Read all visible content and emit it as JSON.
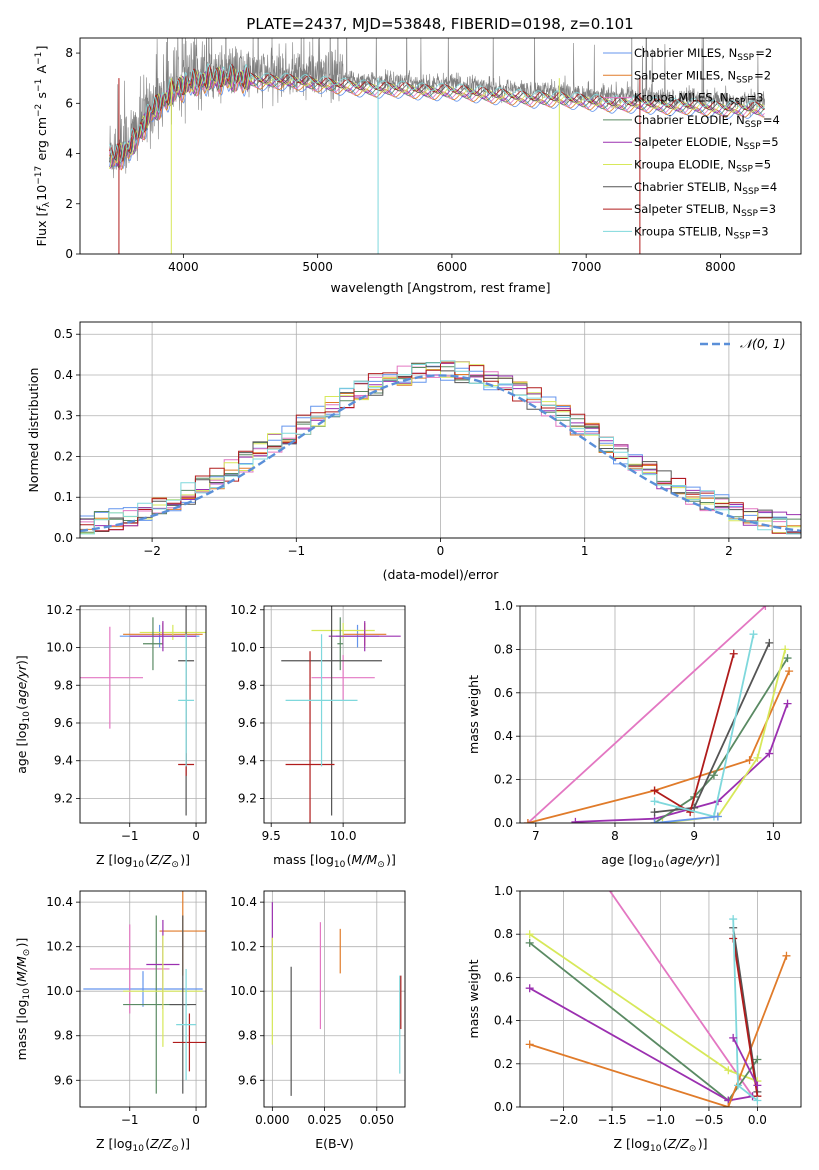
{
  "title": "PLATE=2437, MJD=53848, FIBERID=0198, z=0.101",
  "colors": {
    "chabrier_miles": "#6495ed",
    "salpeter_miles": "#e07b2a",
    "kroupa_miles": "#e377c2",
    "chabrier_elodie": "#5a8a63",
    "salpeter_elodie": "#9b30b0",
    "kroupa_elodie": "#d7e85a",
    "chabrier_stelib": "#555555",
    "salpeter_stelib": "#b01c1c",
    "kroupa_stelib": "#7fd8dc",
    "data": "#808080"
  },
  "chart_data": [
    {
      "id": "spectrum",
      "type": "line",
      "xlabel": "wavelength [Angstrom, rest frame]",
      "ylabel": "Flux [f_λ 10^-17 erg cm^-2 s^-1 A^-1]",
      "xlim": [
        3230,
        8600
      ],
      "ylim": [
        0,
        8.6
      ],
      "xticks": [
        4000,
        5000,
        6000,
        7000,
        8000
      ],
      "yticks": [
        0,
        2,
        4,
        6,
        8
      ],
      "legend": "right",
      "legend_entries": [
        {
          "name": "Chabrier MILES",
          "nssp": "2",
          "color": "chabrier_miles"
        },
        {
          "name": "Salpeter MILES",
          "nssp": "2",
          "color": "salpeter_miles"
        },
        {
          "name": "Kroupa MILES",
          "nssp": "3",
          "color": "kroupa_miles"
        },
        {
          "name": "Chabrier ELODIE",
          "nssp": "4",
          "color": "chabrier_elodie"
        },
        {
          "name": "Salpeter ELODIE",
          "nssp": "5",
          "color": "salpeter_elodie"
        },
        {
          "name": "Kroupa ELODIE",
          "nssp": "5",
          "color": "kroupa_elodie"
        },
        {
          "name": "Chabrier STELIB",
          "nssp": "4",
          "color": "chabrier_stelib"
        },
        {
          "name": "Salpeter STELIB",
          "nssp": "3",
          "color": "salpeter_stelib"
        },
        {
          "name": "Kroupa STELIB",
          "nssp": "3",
          "color": "kroupa_stelib"
        }
      ],
      "continuum": {
        "x": [
          3450,
          3550,
          3650,
          3750,
          3850,
          3950,
          4050,
          4200,
          4400,
          4600,
          4800,
          5000,
          5200,
          5400,
          5600,
          5800,
          6000,
          6200,
          6400,
          6600,
          6800,
          7000,
          7200,
          7400,
          7600,
          7800,
          8000,
          8200,
          8330
        ],
        "y": [
          4.1,
          4.3,
          4.9,
          5.9,
          6.4,
          6.9,
          7.1,
          7.3,
          7.3,
          7.2,
          7.2,
          7.1,
          7.0,
          6.9,
          6.9,
          6.8,
          6.8,
          6.7,
          6.6,
          6.5,
          6.5,
          6.4,
          6.3,
          6.3,
          6.2,
          6.2,
          6.1,
          6.1,
          6.1
        ]
      },
      "drops": [
        {
          "x": 3520,
          "color": "salpeter_stelib"
        },
        {
          "x": 3910,
          "color": "kroupa_elodie"
        },
        {
          "x": 5450,
          "color": "kroupa_stelib"
        },
        {
          "x": 6800,
          "color": "kroupa_elodie"
        },
        {
          "x": 7400,
          "color": "salpeter_stelib"
        }
      ]
    },
    {
      "id": "residuals",
      "type": "line",
      "xlabel": "(data-model)/error",
      "ylabel": "Normed distribution",
      "xlim": [
        -2.5,
        2.5
      ],
      "ylim": [
        0,
        0.53
      ],
      "xticks": [
        -2,
        -1,
        0,
        1,
        2
      ],
      "yticks": [
        0.0,
        0.1,
        0.2,
        0.3,
        0.4,
        0.5
      ],
      "grid": true,
      "legend": "top-right",
      "legend_label": "𝒩(0, 1)",
      "bin_width": 0.1
    },
    {
      "id": "age-vs-z",
      "type": "scatter",
      "xlabel": "Z [log10(Z/Z⊙)]",
      "ylabel": "age [log10(age/yr)]",
      "xlim": [
        -1.75,
        0.15
      ],
      "ylim": [
        9.07,
        10.22
      ],
      "xticks": [
        -1,
        0
      ],
      "yticks": [
        9.2,
        9.4,
        9.6,
        9.8,
        10.0,
        10.2
      ],
      "grid": true,
      "points": [
        {
          "x": -0.55,
          "y": 10.06,
          "xerr": 0.6,
          "yerr": 0.06,
          "color": "chabrier_miles"
        },
        {
          "x": -0.5,
          "y": 10.07,
          "xerr": 0.6,
          "yerr": 0.06,
          "color": "salpeter_miles"
        },
        {
          "x": -0.35,
          "y": 10.08,
          "xerr": 0.5,
          "yerr": 0.04,
          "color": "kroupa_elodie"
        },
        {
          "x": -0.65,
          "y": 10.02,
          "xerr": 0.15,
          "yerr": 0.14,
          "color": "chabrier_elodie"
        },
        {
          "x": -0.5,
          "y": 10.06,
          "xerr": 0.5,
          "yerr": 0.08,
          "color": "salpeter_elodie"
        },
        {
          "x": -1.3,
          "y": 9.84,
          "xerr": 0.5,
          "yerr": 0.27,
          "color": "kroupa_miles"
        },
        {
          "x": -0.15,
          "y": 9.93,
          "xerr": 0.12,
          "yerr": 0.82,
          "color": "chabrier_stelib"
        },
        {
          "x": -0.15,
          "y": 9.38,
          "xerr": 0.12,
          "yerr": 0.06,
          "color": "salpeter_stelib"
        },
        {
          "x": -0.15,
          "y": 9.72,
          "xerr": 0.12,
          "yerr": 0.35,
          "color": "kroupa_stelib"
        }
      ]
    },
    {
      "id": "age-vs-mass",
      "type": "scatter",
      "xlabel": "mass [log10(M/M⊙)]",
      "ylabel": "",
      "xlim": [
        9.45,
        10.43
      ],
      "ylim": [
        9.07,
        10.22
      ],
      "xticks": [
        9.5,
        10.0
      ],
      "yticks": [
        9.2,
        9.4,
        9.6,
        9.8,
        10.0,
        10.2
      ],
      "grid": true,
      "points": [
        {
          "x": 10.1,
          "y": 10.06,
          "xerr": 0.15,
          "yerr": 0.06,
          "color": "chabrier_miles"
        },
        {
          "x": 10.15,
          "y": 10.07,
          "xerr": 0.15,
          "yerr": 0.06,
          "color": "salpeter_miles"
        },
        {
          "x": 10.0,
          "y": 10.09,
          "xerr": 0.22,
          "yerr": 0.04,
          "color": "kroupa_elodie"
        },
        {
          "x": 9.98,
          "y": 10.02,
          "xerr": 0.02,
          "yerr": 0.14,
          "color": "chabrier_elodie"
        },
        {
          "x": 10.15,
          "y": 10.06,
          "xerr": 0.25,
          "yerr": 0.08,
          "color": "salpeter_elodie"
        },
        {
          "x": 10.0,
          "y": 9.84,
          "xerr": 0.22,
          "yerr": 0.12,
          "color": "kroupa_miles"
        },
        {
          "x": 9.92,
          "y": 9.93,
          "xerr": 0.35,
          "yerr": 0.82,
          "color": "chabrier_stelib"
        },
        {
          "x": 9.77,
          "y": 9.38,
          "xerr": 0.17,
          "yerr": 0.6,
          "color": "salpeter_stelib"
        },
        {
          "x": 9.85,
          "y": 9.72,
          "xerr": 0.25,
          "yerr": 0.35,
          "color": "kroupa_stelib"
        }
      ]
    },
    {
      "id": "weight-vs-age",
      "type": "line",
      "xlabel": "age [log10(age/yr)]",
      "ylabel": "mass weight",
      "xlim": [
        6.8,
        10.35
      ],
      "ylim": [
        0,
        1.0
      ],
      "xticks": [
        7,
        8,
        9,
        10
      ],
      "yticks": [
        0.0,
        0.2,
        0.4,
        0.6,
        0.8,
        1.0
      ],
      "grid": true,
      "series": [
        {
          "color": "kroupa_miles",
          "x": [
            6.9,
            9.9
          ],
          "y": [
            0.0,
            1.0
          ]
        },
        {
          "color": "salpeter_miles",
          "x": [
            6.9,
            8.5,
            9.7,
            10.2
          ],
          "y": [
            0.0,
            0.15,
            0.29,
            0.7
          ]
        },
        {
          "color": "salpeter_elodie",
          "x": [
            7.5,
            8.5,
            9.3,
            9.95,
            10.18
          ],
          "y": [
            0.005,
            0.02,
            0.1,
            0.32,
            0.55
          ]
        },
        {
          "color": "chabrier_elodie",
          "x": [
            8.5,
            9.0,
            9.25,
            10.18
          ],
          "y": [
            0.0,
            0.12,
            0.22,
            0.76
          ]
        },
        {
          "color": "kroupa_elodie",
          "x": [
            8.6,
            9.3,
            9.8,
            10.15
          ],
          "y": [
            0.0,
            0.03,
            0.3,
            0.8
          ]
        },
        {
          "color": "chabrier_stelib",
          "x": [
            8.5,
            9.0,
            9.95
          ],
          "y": [
            0.05,
            0.07,
            0.83
          ]
        },
        {
          "color": "salpeter_stelib",
          "x": [
            8.5,
            8.95,
            9.5
          ],
          "y": [
            0.15,
            0.05,
            0.78
          ]
        },
        {
          "color": "kroupa_stelib",
          "x": [
            8.5,
            9.25,
            9.75
          ],
          "y": [
            0.1,
            0.03,
            0.87
          ]
        },
        {
          "color": "chabrier_miles",
          "x": [
            8.5,
            9.3
          ],
          "y": [
            0.0,
            0.03
          ]
        }
      ]
    },
    {
      "id": "mass-vs-z",
      "type": "scatter",
      "xlabel": "Z [log10(Z/Z⊙)]",
      "ylabel": "mass [log10(M/M⊙)]",
      "xlim": [
        -1.75,
        0.15
      ],
      "ylim": [
        9.48,
        10.45
      ],
      "xticks": [
        -1,
        0
      ],
      "yticks": [
        9.6,
        9.8,
        10.0,
        10.2,
        10.4
      ],
      "grid": true,
      "points": [
        {
          "x": -0.8,
          "y": 10.01,
          "xerr": 0.9,
          "yerr": 0.08,
          "color": "chabrier_miles"
        },
        {
          "x": -0.2,
          "y": 10.27,
          "xerr": 0.35,
          "yerr": 0.2,
          "color": "salpeter_miles"
        },
        {
          "x": -1.0,
          "y": 10.1,
          "xerr": 0.6,
          "yerr": 0.2,
          "color": "kroupa_miles"
        },
        {
          "x": -0.6,
          "y": 9.94,
          "xerr": 0.5,
          "yerr": 0.4,
          "color": "chabrier_elodie"
        },
        {
          "x": -0.5,
          "y": 10.12,
          "xerr": 0.25,
          "yerr": 0.2,
          "color": "salpeter_elodie"
        },
        {
          "x": -0.5,
          "y": 10.0,
          "xerr": 0.6,
          "yerr": 0.25,
          "color": "kroupa_elodie"
        },
        {
          "x": -0.2,
          "y": 9.94,
          "xerr": 0.2,
          "yerr": 0.4,
          "color": "chabrier_stelib"
        },
        {
          "x": -0.1,
          "y": 9.77,
          "xerr": 0.25,
          "yerr": 0.13,
          "color": "salpeter_stelib"
        },
        {
          "x": -0.15,
          "y": 9.85,
          "xerr": 0.15,
          "yerr": 0.25,
          "color": "kroupa_stelib"
        }
      ]
    },
    {
      "id": "mass-vs-ebv",
      "type": "scatter",
      "xlabel": "E(B-V)",
      "ylabel": "",
      "xlim": [
        -0.004,
        0.0635
      ],
      "ylim": [
        9.48,
        10.45
      ],
      "xticks": [
        0.0,
        0.025,
        0.05
      ],
      "xticklabels": [
        "0.000",
        "0.025",
        "0.050"
      ],
      "yticks": [
        9.6,
        9.8,
        10.0,
        10.2,
        10.4
      ],
      "grid": true,
      "points": [
        {
          "x": 0.0,
          "y": 10.2,
          "xerr": 0,
          "yerr": 0.2,
          "color": "salpeter_elodie"
        },
        {
          "x": 0.0,
          "y": 10.0,
          "xerr": 0,
          "yerr": 0.24,
          "color": "kroupa_elodie"
        },
        {
          "x": 0.009,
          "y": 9.82,
          "xerr": 0,
          "yerr": 0.29,
          "color": "chabrier_stelib"
        },
        {
          "x": 0.023,
          "y": 10.07,
          "xerr": 0,
          "yerr": 0.24,
          "color": "kroupa_miles"
        },
        {
          "x": 0.0325,
          "y": 10.18,
          "xerr": 0,
          "yerr": 0.1,
          "color": "salpeter_miles"
        },
        {
          "x": 0.061,
          "y": 9.85,
          "xerr": 0,
          "yerr": 0.22,
          "color": "kroupa_stelib"
        },
        {
          "x": 0.0615,
          "y": 9.95,
          "xerr": 0,
          "yerr": 0.12,
          "color": "salpeter_stelib"
        }
      ]
    },
    {
      "id": "weight-vs-z",
      "type": "line",
      "xlabel": "Z [log10(Z/Z⊙)]",
      "ylabel": "mass weight",
      "xlim": [
        -2.45,
        0.45
      ],
      "ylim": [
        0,
        1.0
      ],
      "xticks": [
        -2.0,
        -1.5,
        -1.0,
        -0.5,
        0.0
      ],
      "xticklabels": [
        "−2.0",
        "−1.5",
        "−1.0",
        "−0.5",
        "0.0"
      ],
      "yticks": [
        0.0,
        0.2,
        0.4,
        0.6,
        0.8,
        1.0
      ],
      "grid": true,
      "series": [
        {
          "color": "kroupa_miles",
          "x": [
            -1.6,
            -0.05
          ],
          "y": [
            1.05,
            0.05
          ]
        },
        {
          "color": "kroupa_elodie",
          "x": [
            -2.35,
            -0.3,
            0.0
          ],
          "y": [
            0.8,
            0.17,
            0.12
          ]
        },
        {
          "color": "chabrier_elodie",
          "x": [
            -2.35,
            -0.3,
            0.0
          ],
          "y": [
            0.76,
            0.03,
            0.22
          ]
        },
        {
          "color": "salpeter_elodie",
          "x": [
            -2.35,
            -0.3,
            -0.05
          ],
          "y": [
            0.55,
            0.03,
            0.05
          ]
        },
        {
          "color": "salpeter_miles",
          "x": [
            -2.35,
            -0.3,
            0.3
          ],
          "y": [
            0.29,
            0.0,
            0.7
          ]
        },
        {
          "color": "chabrier_stelib",
          "x": [
            -0.25,
            0.0
          ],
          "y": [
            0.83,
            0.07
          ]
        },
        {
          "color": "salpeter_stelib",
          "x": [
            -0.25,
            0.0
          ],
          "y": [
            0.78,
            0.05
          ]
        },
        {
          "color": "kroupa_stelib",
          "x": [
            -0.25,
            -0.2,
            0.0
          ],
          "y": [
            0.87,
            0.1,
            0.03
          ]
        },
        {
          "color": "salpeter_elodie",
          "x": [
            -0.25,
            0.0
          ],
          "y": [
            0.32,
            0.1
          ]
        }
      ]
    }
  ]
}
